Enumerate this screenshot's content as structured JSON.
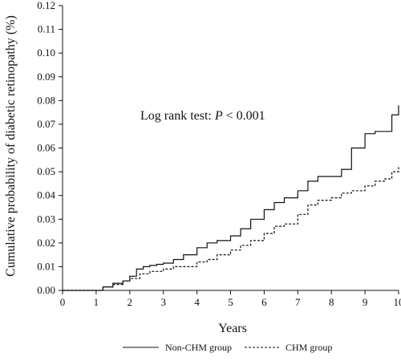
{
  "chart_data": {
    "type": "line",
    "title": "",
    "xlabel": "Years",
    "ylabel": "Cumulative probability of diabetic retinopathy (%)",
    "xlim": [
      0,
      10
    ],
    "ylim": [
      0,
      0.12
    ],
    "x_ticks": [
      "0",
      "1",
      "2",
      "3",
      "4",
      "5",
      "6",
      "7",
      "8",
      "9",
      "10"
    ],
    "y_ticks": [
      "0.00",
      "0.01",
      "0.02",
      "0.03",
      "0.04",
      "0.05",
      "0.06",
      "0.07",
      "0.08",
      "0.09",
      "0.10",
      "0.11",
      "0.12"
    ],
    "annotation": {
      "prefix": "Log rank test: ",
      "italic": "P",
      "suffix": " < 0.001"
    },
    "grid": false,
    "legend_position": "bottom",
    "series": [
      {
        "name": "Non-CHM group",
        "line_style": "solid",
        "color": "#111111",
        "x": [
          0,
          1.0,
          1.2,
          1.5,
          1.8,
          2.0,
          2.2,
          2.4,
          2.6,
          2.8,
          3.0,
          3.3,
          3.6,
          4.0,
          4.3,
          4.6,
          5.0,
          5.3,
          5.6,
          6.0,
          6.3,
          6.6,
          7.0,
          7.3,
          7.6,
          8.0,
          8.3,
          8.6,
          9.0,
          9.3,
          9.6,
          9.8,
          10.0
        ],
        "y": [
          0,
          0,
          0.0015,
          0.003,
          0.004,
          0.006,
          0.009,
          0.01,
          0.0105,
          0.011,
          0.0115,
          0.013,
          0.015,
          0.018,
          0.02,
          0.021,
          0.023,
          0.026,
          0.03,
          0.034,
          0.037,
          0.039,
          0.042,
          0.046,
          0.048,
          0.048,
          0.051,
          0.06,
          0.066,
          0.067,
          0.067,
          0.074,
          0.078
        ]
      },
      {
        "name": "CHM group",
        "line_style": "dashed",
        "color": "#111111",
        "x": [
          0,
          1.0,
          1.2,
          1.5,
          1.8,
          2.0,
          2.3,
          2.6,
          3.0,
          3.3,
          3.6,
          4.0,
          4.3,
          4.6,
          5.0,
          5.3,
          5.6,
          6.0,
          6.3,
          6.6,
          7.0,
          7.3,
          7.6,
          8.0,
          8.3,
          8.6,
          9.0,
          9.3,
          9.6,
          9.8,
          10.0
        ],
        "y": [
          0,
          0,
          0.0015,
          0.0025,
          0.004,
          0.005,
          0.007,
          0.008,
          0.009,
          0.01,
          0.01,
          0.012,
          0.013,
          0.015,
          0.017,
          0.019,
          0.021,
          0.024,
          0.027,
          0.028,
          0.032,
          0.036,
          0.038,
          0.039,
          0.041,
          0.042,
          0.044,
          0.046,
          0.047,
          0.05,
          0.052
        ]
      }
    ]
  }
}
